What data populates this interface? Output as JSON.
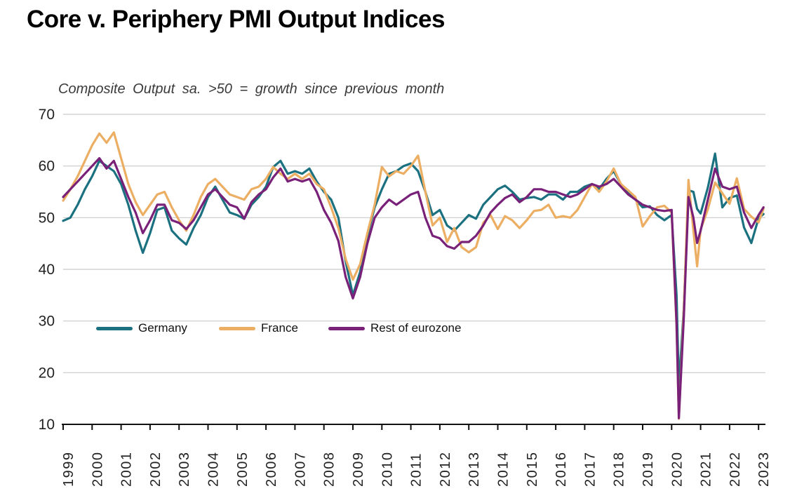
{
  "chart_data": {
    "type": "line",
    "title": "Core v. Periphery PMI Output Indices",
    "subtitle": "Composite Output sa. >50 = growth since previous month",
    "xlabel": "",
    "ylabel": "",
    "ylim": [
      10,
      70
    ],
    "xlim": [
      1999,
      2023.4
    ],
    "grid": true,
    "legend_position": "inside-center-left",
    "yticks": [
      70,
      60,
      50,
      40,
      30,
      20,
      10
    ],
    "xticks": [
      1999,
      2000,
      2001,
      2002,
      2003,
      2004,
      2005,
      2006,
      2007,
      2008,
      2009,
      2010,
      2011,
      2012,
      2013,
      2014,
      2015,
      2016,
      2017,
      2018,
      2019,
      2020,
      2021,
      2022,
      2023
    ],
    "style": {
      "grid_color": "#c9c9c9",
      "axis_color": "#111111",
      "axis_text_color": "#222222",
      "title_color": "#000000",
      "subtitle_color": "#3a3a3a"
    },
    "x": [
      1999.0,
      1999.25,
      1999.5,
      1999.75,
      2000.0,
      2000.25,
      2000.5,
      2000.75,
      2001.0,
      2001.25,
      2001.5,
      2001.75,
      2002.0,
      2002.25,
      2002.5,
      2002.75,
      2003.0,
      2003.25,
      2003.5,
      2003.75,
      2004.0,
      2004.25,
      2004.5,
      2004.75,
      2005.0,
      2005.25,
      2005.5,
      2005.75,
      2006.0,
      2006.25,
      2006.5,
      2006.75,
      2007.0,
      2007.25,
      2007.5,
      2007.75,
      2008.0,
      2008.25,
      2008.5,
      2008.75,
      2009.0,
      2009.25,
      2009.5,
      2009.75,
      2010.0,
      2010.25,
      2010.5,
      2010.75,
      2011.0,
      2011.25,
      2011.5,
      2011.75,
      2012.0,
      2012.25,
      2012.5,
      2012.75,
      2013.0,
      2013.25,
      2013.5,
      2013.75,
      2014.0,
      2014.25,
      2014.5,
      2014.75,
      2015.0,
      2015.25,
      2015.5,
      2015.75,
      2016.0,
      2016.25,
      2016.5,
      2016.75,
      2017.0,
      2017.25,
      2017.5,
      2017.75,
      2018.0,
      2018.25,
      2018.5,
      2018.75,
      2019.0,
      2019.25,
      2019.5,
      2019.75,
      2020.0,
      2020.17,
      2020.25,
      2020.42,
      2020.58,
      2020.75,
      2020.88,
      2021.0,
      2021.25,
      2021.5,
      2021.75,
      2022.0,
      2022.25,
      2022.5,
      2022.75,
      2023.0,
      2023.17
    ],
    "series": [
      {
        "name": "Germany",
        "color": "#1b7180",
        "values": [
          49.4,
          50.0,
          52.5,
          55.5,
          58.0,
          61.0,
          60.0,
          59.0,
          56.5,
          52.5,
          47.5,
          43.2,
          47.0,
          51.5,
          52.0,
          47.5,
          46.0,
          44.8,
          48.0,
          50.5,
          54.0,
          56.0,
          53.5,
          51.0,
          50.5,
          49.8,
          52.5,
          54.0,
          56.0,
          59.8,
          61.0,
          58.5,
          59.0,
          58.5,
          59.5,
          57.0,
          55.0,
          53.5,
          50.0,
          41.5,
          35.0,
          39.5,
          46.5,
          52.0,
          55.5,
          58.5,
          59.0,
          60.0,
          60.5,
          59.0,
          55.0,
          50.5,
          51.5,
          48.5,
          47.5,
          49.0,
          50.5,
          49.8,
          52.5,
          54.0,
          55.5,
          56.2,
          55.0,
          53.5,
          53.8,
          54.0,
          53.5,
          54.5,
          54.5,
          53.5,
          55.0,
          55.0,
          56.0,
          56.5,
          55.5,
          57.5,
          59.0,
          56.5,
          55.0,
          53.5,
          52.0,
          52.2,
          50.5,
          49.5,
          50.5,
          35.0,
          17.4,
          32.3,
          55.3,
          55.0,
          51.7,
          50.8,
          55.8,
          62.4,
          52.0,
          53.8,
          54.3,
          48.1,
          45.1,
          49.9,
          50.7
        ]
      },
      {
        "name": "France",
        "color": "#ecae62",
        "values": [
          53.3,
          55.5,
          58.0,
          61.0,
          64.0,
          66.3,
          64.5,
          66.5,
          61.5,
          56.5,
          53.0,
          50.5,
          52.5,
          54.5,
          55.0,
          52.0,
          49.5,
          47.5,
          50.5,
          54.0,
          56.5,
          57.5,
          56.0,
          54.5,
          54.0,
          53.5,
          55.5,
          56.0,
          57.5,
          59.8,
          58.5,
          57.5,
          58.5,
          57.5,
          58.5,
          56.5,
          55.5,
          52.0,
          48.0,
          42.0,
          38.0,
          41.0,
          47.0,
          52.5,
          59.8,
          58.0,
          59.0,
          58.5,
          60.0,
          62.0,
          55.0,
          48.5,
          50.0,
          45.3,
          48.0,
          44.3,
          43.3,
          44.3,
          49.0,
          50.5,
          47.8,
          50.3,
          49.5,
          48.0,
          49.5,
          51.3,
          51.5,
          52.5,
          50.0,
          50.3,
          50.0,
          51.5,
          54.0,
          56.5,
          55.0,
          57.0,
          59.5,
          56.5,
          55.3,
          54.0,
          48.3,
          50.3,
          52.0,
          52.3,
          51.0,
          28.9,
          11.1,
          32.1,
          57.3,
          47.5,
          40.6,
          47.7,
          51.6,
          56.8,
          54.7,
          52.7,
          57.6,
          51.7,
          50.2,
          49.1,
          51.7
        ]
      },
      {
        "name": "Rest of eurozone",
        "color": "#792179",
        "values": [
          54.0,
          55.5,
          57.0,
          58.5,
          60.0,
          61.5,
          59.5,
          61.0,
          57.5,
          54.0,
          51.0,
          47.0,
          49.5,
          52.5,
          52.5,
          49.5,
          49.0,
          47.8,
          49.5,
          52.0,
          54.5,
          55.5,
          54.0,
          52.5,
          52.0,
          49.8,
          53.0,
          54.5,
          55.5,
          57.8,
          59.5,
          57.0,
          57.5,
          57.0,
          57.5,
          55.0,
          51.5,
          49.0,
          45.5,
          38.5,
          34.4,
          38.5,
          45.0,
          50.0,
          52.0,
          53.5,
          52.5,
          53.5,
          54.5,
          55.0,
          50.0,
          46.5,
          46.0,
          44.5,
          44.0,
          45.3,
          45.3,
          46.5,
          48.5,
          51.0,
          52.5,
          53.8,
          54.5,
          53.0,
          54.0,
          55.5,
          55.5,
          55.0,
          55.0,
          54.5,
          54.0,
          54.5,
          55.5,
          56.5,
          56.0,
          56.5,
          57.5,
          56.0,
          54.5,
          53.5,
          52.5,
          52.0,
          51.5,
          51.3,
          51.5,
          29.5,
          11.2,
          30.5,
          54.0,
          50.0,
          45.1,
          47.5,
          53.5,
          59.5,
          56.0,
          55.5,
          56.0,
          51.0,
          48.0,
          50.5,
          52.0
        ]
      }
    ]
  }
}
